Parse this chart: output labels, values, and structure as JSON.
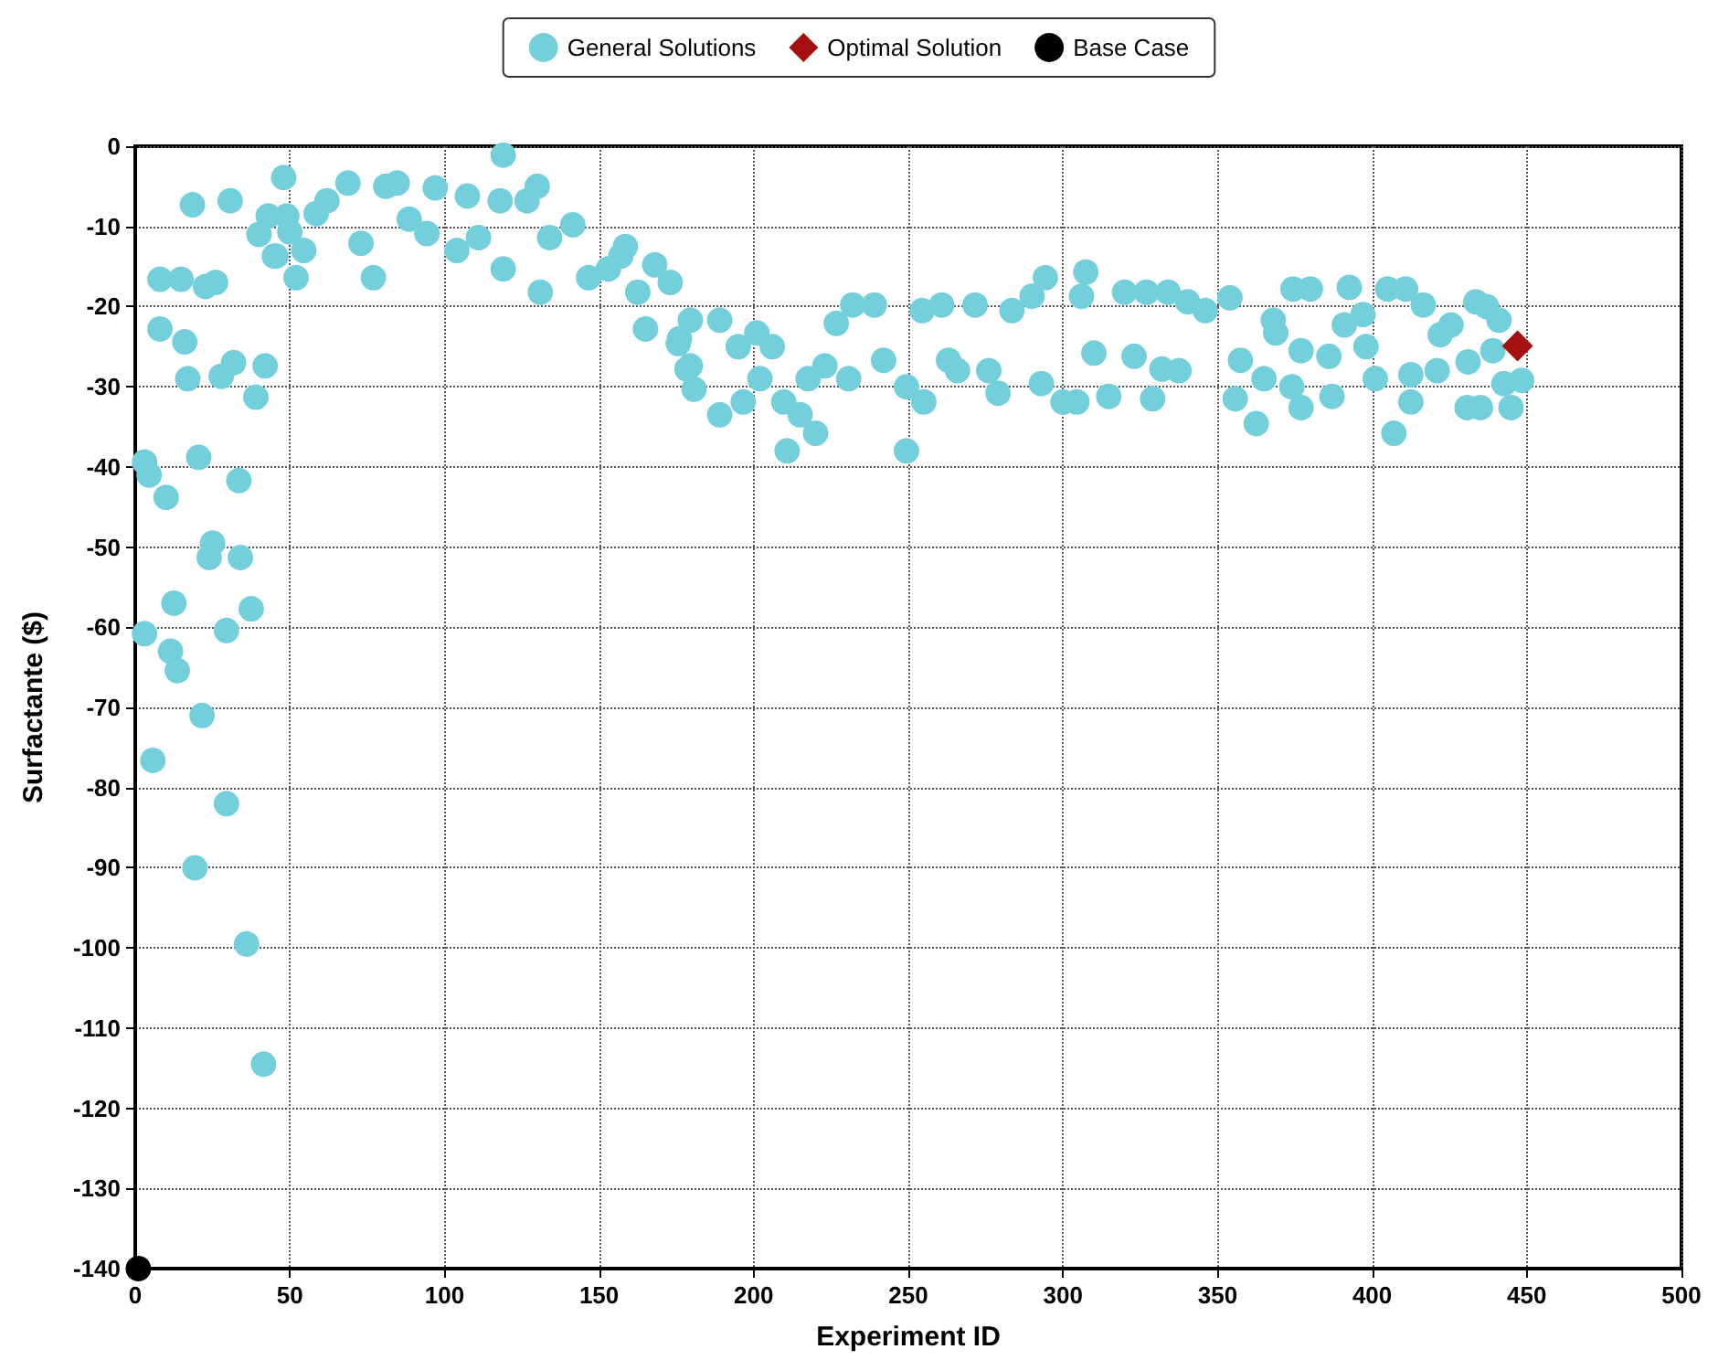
{
  "chart_data": {
    "type": "scatter",
    "xlabel": "Experiment ID",
    "ylabel": "Surfactante ($)",
    "xlim": [
      0,
      500
    ],
    "ylim": [
      -140,
      0
    ],
    "xticks": [
      0,
      50,
      100,
      150,
      200,
      250,
      300,
      350,
      400,
      450,
      500
    ],
    "yticks": [
      -140,
      -130,
      -120,
      -110,
      -100,
      -90,
      -80,
      -70,
      -60,
      -50,
      -40,
      -30,
      -20,
      -10,
      0
    ],
    "grid": true,
    "legend": "top",
    "series": [
      {
        "name": "General Solutions",
        "color": "#72cfdb",
        "marker": "circle",
        "x": [
          3,
          4.5,
          3,
          5.7,
          8,
          8,
          10,
          12.5,
          11.4,
          13.6,
          14.8,
          16,
          17,
          18.5,
          19.3,
          20.5,
          21.6,
          22.7,
          23.9,
          25,
          26,
          27.8,
          29.5,
          29.5,
          30.7,
          31.8,
          33.5,
          34,
          36,
          37.5,
          39,
          42,
          41.5,
          40,
          43,
          45.5,
          48,
          49,
          50,
          45,
          52,
          54.5,
          58.5,
          62,
          68.8,
          73,
          77,
          81,
          84.7,
          88.6,
          94.3,
          97,
          104,
          107.4,
          111,
          119,
          118,
          119,
          126.7,
          130,
          131,
          134,
          141.5,
          146.6,
          153,
          157,
          162.5,
          165,
          168,
          173,
          176,
          179.5,
          158.5,
          179.5,
          175.6,
          178.4,
          180.7,
          189,
          189,
          195,
          196.6,
          201,
          206,
          202,
          210.8,
          209.7,
          215,
          220,
          217.6,
          223,
          226.7,
          232,
          230.7,
          239,
          242,
          249.4,
          249.4,
          254.5,
          255,
          260.8,
          263,
          265.9,
          271.6,
          276,
          279,
          283.5,
          290,
          294.3,
          293,
          300,
          304.5,
          307.4,
          306,
          310,
          314.8,
          319.9,
          323,
          327,
          329,
          334,
          332,
          337.5,
          340.3,
          346,
          354,
          355.7,
          362.5,
          357.4,
          368,
          365,
          374.4,
          380,
          368.8,
          377,
          374,
          377,
          387,
          392.6,
          391,
          397,
          386,
          398,
          405,
          410.8,
          407,
          401,
          412.5,
          412.5,
          416.5,
          422,
          421,
          425.5,
          430.7,
          435,
          433.5,
          437,
          431,
          441,
          444.9,
          442.6,
          448.3,
          439
        ],
        "values": [
          -39.4,
          -41,
          -60.8,
          -76.6,
          -16.6,
          -22.8,
          -43.8,
          -57,
          -63,
          -65.4,
          -16.6,
          -24.4,
          -29,
          -7.3,
          -90,
          -38.8,
          -71,
          -17.5,
          -51.3,
          -49.5,
          -17,
          -28.7,
          -60.4,
          -82,
          -6.8,
          -27,
          -41.7,
          -51.3,
          -99.5,
          -57.7,
          -31.3,
          -27.4,
          -114.5,
          -11,
          -8.7,
          -13.7,
          -3.9,
          -8.7,
          -10.7,
          -13.7,
          -16.4,
          -13,
          -8.4,
          -6.8,
          -4.6,
          -12.1,
          -16.4,
          -5,
          -4.6,
          -9.1,
          -10.9,
          -5.2,
          -13,
          -6.2,
          -11.4,
          -1.1,
          -6.8,
          -15.3,
          -6.8,
          -5,
          -18.2,
          -11.4,
          -9.8,
          -16.4,
          -15.3,
          -13.7,
          -18.2,
          -22.8,
          -14.8,
          -17,
          -24,
          -27.4,
          -12.5,
          -21.7,
          -24.6,
          -27.8,
          -30.3,
          -21.7,
          -33.5,
          -25,
          -31.9,
          -23.3,
          -25,
          -29,
          -38,
          -31.9,
          -33.5,
          -35.8,
          -29,
          -27.4,
          -22.1,
          -19.8,
          -29,
          -19.8,
          -26.7,
          -38,
          -30,
          -20.5,
          -31.9,
          -19.8,
          -26.7,
          -28,
          -19.8,
          -28,
          -30.8,
          -20.5,
          -18.7,
          -16.4,
          -29.6,
          -31.9,
          -31.9,
          -15.7,
          -18.7,
          -25.8,
          -31.2,
          -18.2,
          -26.2,
          -18.2,
          -31.5,
          -18.2,
          -27.8,
          -28,
          -19.4,
          -20.5,
          -18.9,
          -31.5,
          -34.6,
          -26.7,
          -21.7,
          -29,
          -17.8,
          -17.8,
          -23.3,
          -25.5,
          -30,
          -32.6,
          -31.2,
          -17.6,
          -22.3,
          -21,
          -26.2,
          -25,
          -17.8,
          -17.8,
          -35.8,
          -29,
          -31.9,
          -28.5,
          -19.8,
          -23.5,
          -28,
          -22.3,
          -32.6,
          -32.6,
          -19.4,
          -20,
          -26.9,
          -21.7,
          -32.6,
          -29.6,
          -29.2,
          -25.5
        ]
      },
      {
        "name": "Optimal Solution",
        "color": "#a50f0f",
        "marker": "diamond",
        "x": [
          447
        ],
        "values": [
          -24.9
        ]
      },
      {
        "name": "Base Case",
        "color": "#000000",
        "marker": "circle",
        "x": [
          1
        ],
        "values": [
          -140
        ]
      }
    ]
  }
}
